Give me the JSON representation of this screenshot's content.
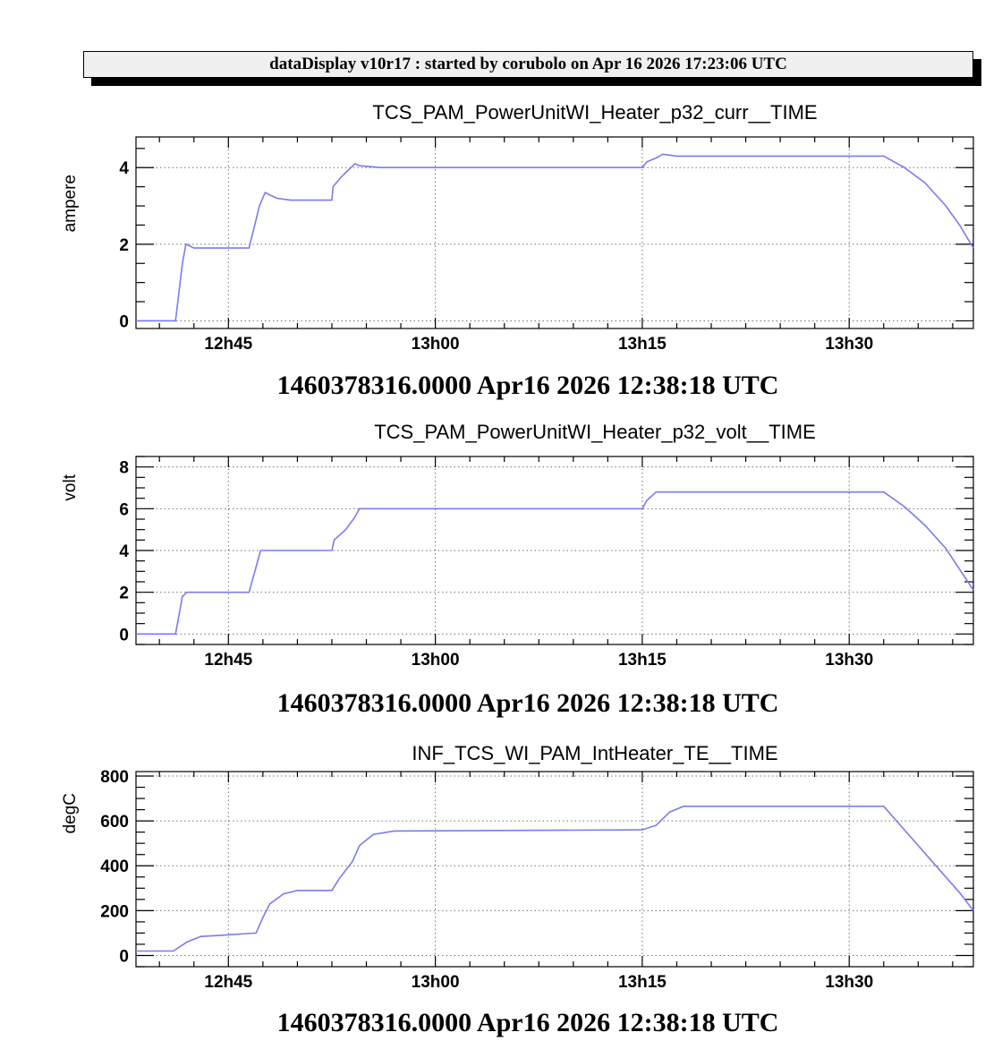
{
  "banner": "dataDisplay v10r17 : started by corubolo on Apr 16 2026 17:23:06 UTC",
  "colors": {
    "series": "#7b7bf0",
    "banner_bg": "#f0f0f0"
  },
  "chart_data": [
    {
      "type": "line",
      "title": "TCS_PAM_PowerUnitWI_Heater_p32_curr__TIME",
      "ylabel": "ampere",
      "xlabel": "1460378316.0000 Apr16 2026 12:38:18 UTC",
      "x_ticks": [
        "12h45",
        "13h00",
        "13h15",
        "13h30"
      ],
      "xlim": [
        "12:38:18",
        "13:39:00"
      ],
      "y_ticks": [
        0,
        2,
        4
      ],
      "ylim": [
        -0.2,
        4.8
      ],
      "grid": true,
      "series": [
        {
          "x": [
            "12:38:18",
            "12:41:10",
            "12:41:40",
            "12:41:55",
            "12:42:30",
            "12:46:30",
            "12:47:15",
            "12:47:40",
            "12:48:30",
            "12:49:30",
            "12:52:30",
            "12:52:35",
            "12:53:10",
            "12:54:10",
            "12:54:30",
            "12:56:00",
            "13:15:00",
            "13:15:20",
            "13:16:00",
            "13:16:30",
            "13:17:30",
            "13:32:30",
            "13:34:00",
            "13:35:30",
            "13:37:00",
            "13:38:00",
            "13:39:00"
          ],
          "y": [
            0,
            0,
            1.5,
            2.0,
            1.9,
            1.9,
            3.0,
            3.35,
            3.2,
            3.15,
            3.15,
            3.5,
            3.75,
            4.1,
            4.05,
            4.0,
            4.0,
            4.15,
            4.25,
            4.35,
            4.3,
            4.3,
            4.0,
            3.6,
            3.0,
            2.5,
            1.9
          ]
        }
      ]
    },
    {
      "type": "line",
      "title": "TCS_PAM_PowerUnitWI_Heater_p32_volt__TIME",
      "ylabel": "volt",
      "xlabel": "1460378316.0000 Apr16 2026 12:38:18 UTC",
      "x_ticks": [
        "12h45",
        "13h00",
        "13h15",
        "13h30"
      ],
      "xlim": [
        "12:38:18",
        "13:39:00"
      ],
      "y_ticks": [
        0,
        2,
        4,
        6,
        8
      ],
      "ylim": [
        -0.5,
        8.5
      ],
      "grid": true,
      "series": [
        {
          "x": [
            "12:38:18",
            "12:41:10",
            "12:41:40",
            "12:42:00",
            "12:46:30",
            "12:47:20",
            "12:52:30",
            "12:52:40",
            "12:53:30",
            "12:54:10",
            "12:54:30",
            "13:15:00",
            "13:15:20",
            "13:16:00",
            "13:32:30",
            "13:34:00",
            "13:35:30",
            "13:37:00",
            "13:38:00",
            "13:39:00"
          ],
          "y": [
            0,
            0,
            1.8,
            2.0,
            2.0,
            4.0,
            4.0,
            4.5,
            5.0,
            5.6,
            6.0,
            6.0,
            6.4,
            6.8,
            6.8,
            6.1,
            5.2,
            4.1,
            3.1,
            2.1
          ]
        }
      ]
    },
    {
      "type": "line",
      "title": "INF_TCS_WI_PAM_IntHeater_TE__TIME",
      "ylabel": "degC",
      "xlabel": "1460378316.0000 Apr16 2026 12:38:18 UTC",
      "x_ticks": [
        "12h45",
        "13h00",
        "13h15",
        "13h30"
      ],
      "xlim": [
        "12:38:18",
        "13:39:00"
      ],
      "y_ticks": [
        0,
        200,
        400,
        600,
        800
      ],
      "ylim": [
        -50,
        820
      ],
      "grid": true,
      "series": [
        {
          "x": [
            "12:38:18",
            "12:41:00",
            "12:42:00",
            "12:43:00",
            "12:44:30",
            "12:47:00",
            "12:47:30",
            "12:48:00",
            "12:49:00",
            "12:50:00",
            "12:52:30",
            "12:53:00",
            "12:54:00",
            "12:54:30",
            "12:55:30",
            "12:57:00",
            "13:15:00",
            "13:16:00",
            "13:17:00",
            "13:18:00",
            "13:32:30",
            "13:34:00",
            "13:36:00",
            "13:38:00",
            "13:39:00"
          ],
          "y": [
            20,
            20,
            60,
            85,
            90,
            100,
            170,
            230,
            275,
            290,
            290,
            340,
            420,
            490,
            540,
            555,
            560,
            580,
            640,
            665,
            665,
            560,
            420,
            280,
            200
          ]
        }
      ]
    }
  ]
}
